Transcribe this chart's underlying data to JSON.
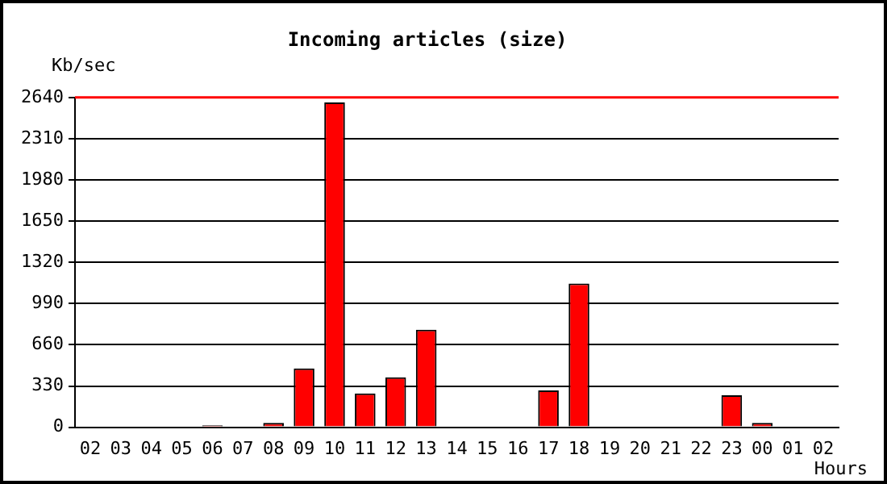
{
  "chart_data": {
    "type": "bar",
    "title": "Incoming articles (size)",
    "xlabel": "Hours",
    "ylabel": "Kb/sec",
    "categories": [
      "02",
      "03",
      "04",
      "05",
      "06",
      "07",
      "08",
      "09",
      "10",
      "11",
      "12",
      "13",
      "14",
      "15",
      "16",
      "17",
      "18",
      "19",
      "20",
      "21",
      "22",
      "23",
      "00",
      "01",
      "02"
    ],
    "series": [
      {
        "color": "#ff0000",
        "values": [
          0,
          0,
          0,
          0,
          15,
          0,
          35,
          470,
          2600,
          270,
          400,
          780,
          0,
          0,
          0,
          295,
          1150,
          0,
          0,
          0,
          0,
          255,
          35,
          0,
          0
        ]
      }
    ],
    "ylim": [
      0,
      2640
    ],
    "yticks": [
      0,
      330,
      660,
      990,
      1320,
      1650,
      1980,
      2310,
      2640
    ],
    "grid": "y",
    "legend": false,
    "ref_lines": [
      {
        "axis": "y",
        "value": 2640,
        "color": "#ff0000"
      }
    ]
  }
}
